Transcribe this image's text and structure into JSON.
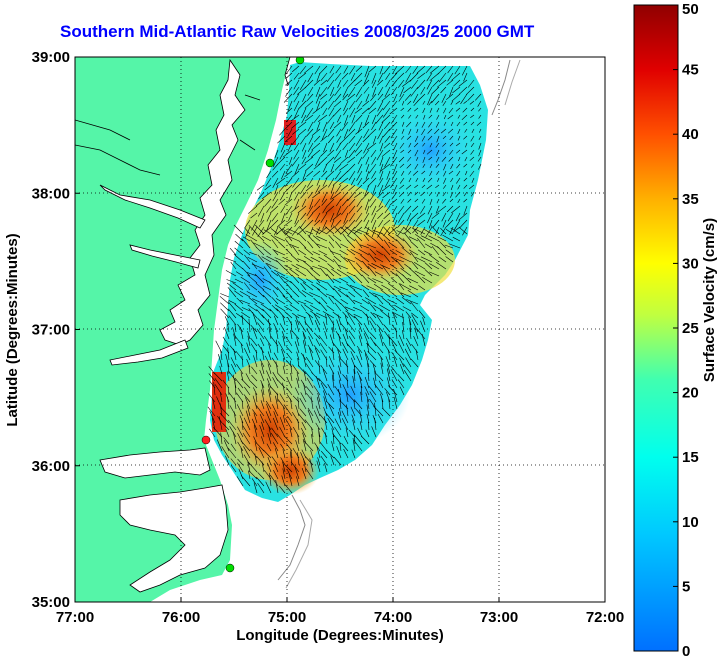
{
  "title": "Southern Mid-Atlantic Raw Velocities 2008/03/25 2000 GMT",
  "xlabel": "Longitude (Degrees:Minutes)",
  "ylabel": "Latitude (Degrees:Minutes)",
  "colorbar_label": "Surface Velocity (cm/s)",
  "x_ticks": [
    "77:00",
    "76:00",
    "75:00",
    "74:00",
    "73:00",
    "72:00"
  ],
  "y_ticks": [
    "39:00",
    "38:00",
    "37:00",
    "36:00",
    "35:00"
  ],
  "colorbar_ticks": [
    "50",
    "45",
    "40",
    "35",
    "30",
    "25",
    "20",
    "15",
    "10",
    "5",
    "0"
  ],
  "extent": {
    "lon_min": -77,
    "lon_max": -72,
    "lat_min": 35,
    "lat_max": 39
  },
  "colors": {
    "land": "#55f5a8",
    "title": "#0000ff",
    "grid": "#000000",
    "station": "#00dd00",
    "station_red": "#ff2020"
  }
}
